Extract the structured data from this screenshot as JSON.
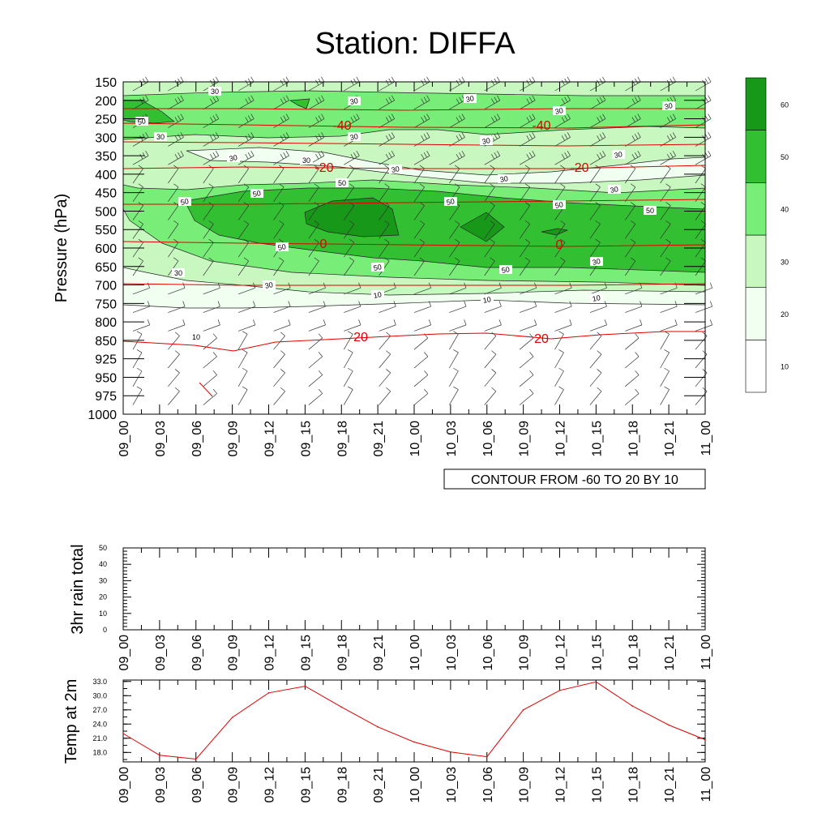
{
  "chart_data": [
    {
      "type": "contour",
      "title": "Station: DIFFA",
      "ylabel": "Pressure (hPa)",
      "y_tick_labels": [
        "150",
        "200",
        "250",
        "300",
        "350",
        "400",
        "450",
        "500",
        "550",
        "600",
        "650",
        "700",
        "750",
        "800",
        "850",
        "925",
        "950",
        "975",
        "1000"
      ],
      "x_tick_labels": [
        "09_00",
        "09_03",
        "09_06",
        "09_09",
        "09_12",
        "09_15",
        "09_18",
        "09_21",
        "10_00",
        "10_03",
        "10_06",
        "10_09",
        "10_12",
        "10_15",
        "10_18",
        "10_21",
        "11_00"
      ],
      "colorbar": {
        "levels": [
          "10",
          "20",
          "30",
          "40",
          "50",
          "60"
        ],
        "colors": [
          "#ffffff",
          "#f0fff0",
          "#c8f8c0",
          "#78ee78",
          "#32c032",
          "#189818"
        ]
      },
      "contour_info": "CONTOUR FROM -60 TO 20 BY 10",
      "humidity_labels": [
        "30",
        "30",
        "30",
        "30",
        "30",
        "30",
        "30",
        "30",
        "30",
        "30",
        "30",
        "30",
        "30",
        "30",
        "50",
        "50",
        "50",
        "50",
        "50",
        "50",
        "50",
        "50",
        "50",
        "50",
        "30",
        "30",
        "30",
        "10",
        "10",
        "10",
        "10"
      ],
      "temperature_contours": [
        {
          "value": "-40",
          "labels": [
            "-40",
            "-40"
          ]
        },
        {
          "value": "-20",
          "labels": [
            "-20",
            "-20"
          ]
        },
        {
          "value": "0",
          "labels": [
            "0",
            "0"
          ]
        },
        {
          "value": "20",
          "labels": [
            "20",
            "20"
          ]
        }
      ]
    },
    {
      "type": "line",
      "ylabel": "3hr rain total",
      "ylim": [
        0,
        50
      ],
      "y_tick_labels": [
        "0",
        "10",
        "20",
        "30",
        "40",
        "50"
      ],
      "x_tick_labels": [
        "09_00",
        "09_03",
        "09_06",
        "09_09",
        "09_12",
        "09_15",
        "09_18",
        "09_21",
        "10_00",
        "10_03",
        "10_06",
        "10_09",
        "10_12",
        "10_15",
        "10_18",
        "10_21",
        "11_00"
      ],
      "values": [
        0,
        0,
        0,
        0,
        0,
        0,
        0,
        0,
        0,
        0,
        0,
        0,
        0,
        0,
        0,
        0,
        0
      ]
    },
    {
      "type": "line",
      "ylabel": "Temp at 2m",
      "ylim": [
        16.0,
        33.3
      ],
      "y_tick_labels": [
        "18.0",
        "21.0",
        "24.0",
        "27.0",
        "30.0",
        "33.0"
      ],
      "x_tick_labels": [
        "09_00",
        "09_03",
        "09_06",
        "09_09",
        "09_12",
        "09_15",
        "09_18",
        "09_21",
        "10_00",
        "10_03",
        "10_06",
        "10_09",
        "10_12",
        "10_15",
        "10_18",
        "10_21",
        "11_00"
      ],
      "values": [
        22.0,
        17.4,
        16.6,
        25.4,
        30.6,
        32.0,
        27.6,
        23.4,
        20.2,
        18.1,
        17.1,
        27.0,
        31.1,
        32.9,
        27.8,
        23.8,
        20.7
      ],
      "line_color": "#e00000"
    }
  ]
}
